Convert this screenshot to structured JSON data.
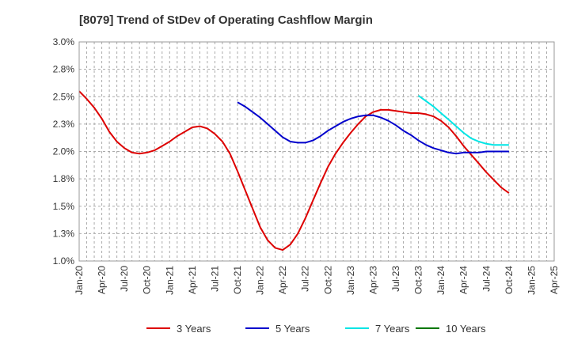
{
  "chart_data": {
    "type": "line",
    "title": "[8079]  Trend of StDev of Operating Cashflow Margin",
    "xlabel": "",
    "ylabel": "",
    "x_ticks": [
      "Jan-20",
      "Apr-20",
      "Jul-20",
      "Oct-20",
      "Jan-21",
      "Apr-21",
      "Jul-21",
      "Oct-21",
      "Jan-22",
      "Apr-22",
      "Jul-22",
      "Oct-22",
      "Jan-23",
      "Apr-23",
      "Jul-23",
      "Oct-23",
      "Jan-24",
      "Apr-24",
      "Jul-24",
      "Oct-24",
      "Jan-25",
      "Apr-25"
    ],
    "y_ticks": [
      "1.0%",
      "1.3%",
      "1.5%",
      "1.8%",
      "2.0%",
      "2.3%",
      "2.5%",
      "2.8%",
      "3.0%"
    ],
    "ylim": [
      1.0,
      3.0
    ],
    "y_unit": "%",
    "grid": true,
    "legend_position": "bottom",
    "series": [
      {
        "name": "3 Years",
        "color": "#dd0000",
        "points": [
          [
            "Jan-20",
            2.55
          ],
          [
            "Feb-20",
            2.48
          ],
          [
            "Mar-20",
            2.4
          ],
          [
            "Apr-20",
            2.3
          ],
          [
            "May-20",
            2.18
          ],
          [
            "Jun-20",
            2.09
          ],
          [
            "Jul-20",
            2.03
          ],
          [
            "Aug-20",
            1.99
          ],
          [
            "Sep-20",
            1.98
          ],
          [
            "Oct-20",
            1.99
          ],
          [
            "Nov-20",
            2.01
          ],
          [
            "Dec-20",
            2.05
          ],
          [
            "Jan-21",
            2.09
          ],
          [
            "Feb-21",
            2.14
          ],
          [
            "Mar-21",
            2.18
          ],
          [
            "Apr-21",
            2.22
          ],
          [
            "May-21",
            2.23
          ],
          [
            "Jun-21",
            2.21
          ],
          [
            "Jul-21",
            2.16
          ],
          [
            "Aug-21",
            2.09
          ],
          [
            "Sep-21",
            1.98
          ],
          [
            "Oct-21",
            1.82
          ],
          [
            "Nov-21",
            1.65
          ],
          [
            "Dec-21",
            1.48
          ],
          [
            "Jan-22",
            1.31
          ],
          [
            "Feb-22",
            1.19
          ],
          [
            "Mar-22",
            1.12
          ],
          [
            "Apr-22",
            1.1
          ],
          [
            "May-22",
            1.15
          ],
          [
            "Jun-22",
            1.25
          ],
          [
            "Jul-22",
            1.39
          ],
          [
            "Aug-22",
            1.55
          ],
          [
            "Sep-22",
            1.71
          ],
          [
            "Oct-22",
            1.86
          ],
          [
            "Nov-22",
            1.98
          ],
          [
            "Dec-22",
            2.08
          ],
          [
            "Jan-23",
            2.17
          ],
          [
            "Feb-23",
            2.25
          ],
          [
            "Mar-23",
            2.32
          ],
          [
            "Apr-23",
            2.36
          ],
          [
            "May-23",
            2.38
          ],
          [
            "Jun-23",
            2.38
          ],
          [
            "Jul-23",
            2.37
          ],
          [
            "Aug-23",
            2.36
          ],
          [
            "Sep-23",
            2.35
          ],
          [
            "Oct-23",
            2.35
          ],
          [
            "Nov-23",
            2.34
          ],
          [
            "Dec-23",
            2.32
          ],
          [
            "Jan-24",
            2.28
          ],
          [
            "Feb-24",
            2.22
          ],
          [
            "Mar-24",
            2.14
          ],
          [
            "Apr-24",
            2.05
          ],
          [
            "May-24",
            1.97
          ],
          [
            "Jun-24",
            1.89
          ],
          [
            "Jul-24",
            1.81
          ],
          [
            "Aug-24",
            1.74
          ],
          [
            "Sep-24",
            1.67
          ],
          [
            "Oct-24",
            1.62
          ]
        ]
      },
      {
        "name": "5 Years",
        "color": "#0000cc",
        "points": [
          [
            "Oct-21",
            2.45
          ],
          [
            "Nov-21",
            2.41
          ],
          [
            "Dec-21",
            2.36
          ],
          [
            "Jan-22",
            2.31
          ],
          [
            "Feb-22",
            2.25
          ],
          [
            "Mar-22",
            2.19
          ],
          [
            "Apr-22",
            2.13
          ],
          [
            "May-22",
            2.09
          ],
          [
            "Jun-22",
            2.08
          ],
          [
            "Jul-22",
            2.08
          ],
          [
            "Aug-22",
            2.1
          ],
          [
            "Sep-22",
            2.14
          ],
          [
            "Oct-22",
            2.19
          ],
          [
            "Nov-22",
            2.23
          ],
          [
            "Dec-22",
            2.27
          ],
          [
            "Jan-23",
            2.3
          ],
          [
            "Feb-23",
            2.32
          ],
          [
            "Mar-23",
            2.33
          ],
          [
            "Apr-23",
            2.33
          ],
          [
            "May-23",
            2.31
          ],
          [
            "Jun-23",
            2.28
          ],
          [
            "Jul-23",
            2.24
          ],
          [
            "Aug-23",
            2.19
          ],
          [
            "Sep-23",
            2.15
          ],
          [
            "Oct-23",
            2.1
          ],
          [
            "Nov-23",
            2.06
          ],
          [
            "Dec-23",
            2.03
          ],
          [
            "Jan-24",
            2.01
          ],
          [
            "Feb-24",
            1.99
          ],
          [
            "Mar-24",
            1.98
          ],
          [
            "Apr-24",
            1.99
          ],
          [
            "May-24",
            1.99
          ],
          [
            "Jun-24",
            1.99
          ],
          [
            "Jul-24",
            2.0
          ],
          [
            "Aug-24",
            2.0
          ],
          [
            "Sep-24",
            2.0
          ],
          [
            "Oct-24",
            2.0
          ]
        ]
      },
      {
        "name": "7 Years",
        "color": "#00e5e5",
        "points": [
          [
            "Oct-23",
            2.51
          ],
          [
            "Nov-23",
            2.46
          ],
          [
            "Dec-23",
            2.41
          ],
          [
            "Jan-24",
            2.35
          ],
          [
            "Feb-24",
            2.29
          ],
          [
            "Mar-24",
            2.23
          ],
          [
            "Apr-24",
            2.17
          ],
          [
            "May-24",
            2.12
          ],
          [
            "Jun-24",
            2.09
          ],
          [
            "Jul-24",
            2.07
          ],
          [
            "Aug-24",
            2.06
          ],
          [
            "Sep-24",
            2.06
          ],
          [
            "Oct-24",
            2.06
          ]
        ]
      },
      {
        "name": "10 Years",
        "color": "#007700",
        "points": []
      }
    ]
  }
}
